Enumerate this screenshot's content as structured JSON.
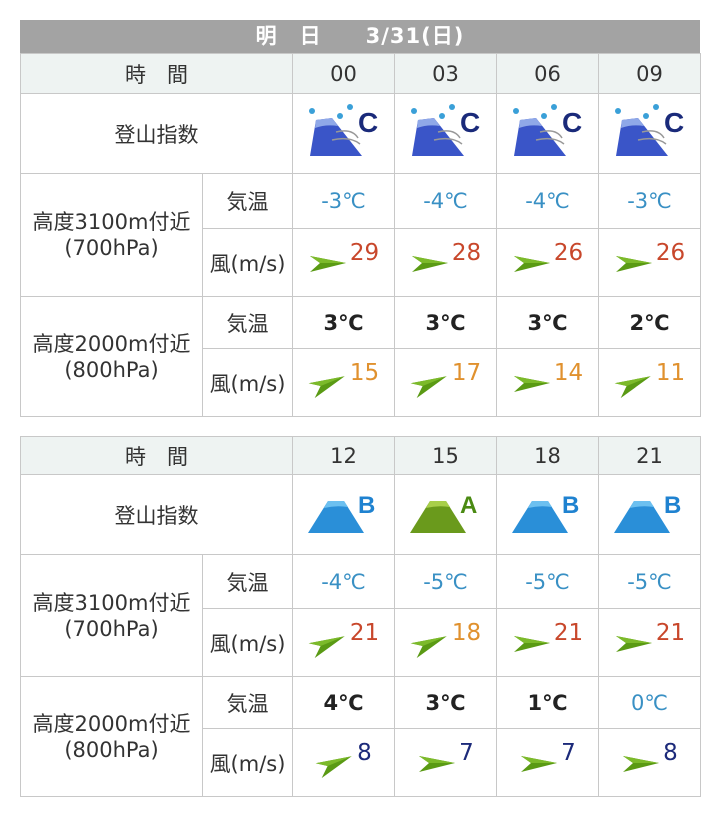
{
  "header": {
    "title": "明　日　　3/31(日)"
  },
  "labels": {
    "time": "時　間",
    "index": "登山指数",
    "alt3100": "高度3100m付近",
    "hpa700": "(700hPa)",
    "alt2000": "高度2000m付近",
    "hpa800": "(800hPa)",
    "temp": "気温",
    "wind": "風(m/s)"
  },
  "colors": {
    "header": "#a3a3a3",
    "temp_negative": "#3990c4",
    "wind_strong": "#c8472b",
    "wind_moderate": "#e0912e",
    "wind_light": "#1c2a7a",
    "arrow": "#5a9a14"
  },
  "tables": [
    {
      "times": [
        "00",
        "03",
        "06",
        "09"
      ],
      "index": [
        {
          "grade": "C",
          "icon": "mountain-rain-wind-icon"
        },
        {
          "grade": "C",
          "icon": "mountain-rain-wind-icon"
        },
        {
          "grade": "C",
          "icon": "mountain-rain-wind-icon"
        },
        {
          "grade": "C",
          "icon": "mountain-rain-wind-icon"
        }
      ],
      "t700": [
        "-3℃",
        "-4℃",
        "-4℃",
        "-3℃"
      ],
      "w700": [
        {
          "speed": "29",
          "dir": "W"
        },
        {
          "speed": "28",
          "dir": "W"
        },
        {
          "speed": "26",
          "dir": "W"
        },
        {
          "speed": "26",
          "dir": "W"
        }
      ],
      "t800": [
        "3℃",
        "3℃",
        "3℃",
        "2℃"
      ],
      "w800": [
        {
          "speed": "15",
          "dir": "SW"
        },
        {
          "speed": "17",
          "dir": "SW"
        },
        {
          "speed": "14",
          "dir": "W"
        },
        {
          "speed": "11",
          "dir": "SW"
        }
      ]
    },
    {
      "times": [
        "12",
        "15",
        "18",
        "21"
      ],
      "index": [
        {
          "grade": "B",
          "icon": "mountain-icon"
        },
        {
          "grade": "A",
          "icon": "mountain-icon"
        },
        {
          "grade": "B",
          "icon": "mountain-icon"
        },
        {
          "grade": "B",
          "icon": "mountain-icon"
        }
      ],
      "t700": [
        "-4℃",
        "-5℃",
        "-5℃",
        "-5℃"
      ],
      "w700": [
        {
          "speed": "21",
          "dir": "SW"
        },
        {
          "speed": "18",
          "dir": "SW"
        },
        {
          "speed": "21",
          "dir": "W"
        },
        {
          "speed": "21",
          "dir": "W"
        }
      ],
      "t800": [
        "4℃",
        "3℃",
        "1℃",
        "0℃"
      ],
      "w800": [
        {
          "speed": "8",
          "dir": "SW"
        },
        {
          "speed": "7",
          "dir": "W"
        },
        {
          "speed": "7",
          "dir": "W"
        },
        {
          "speed": "8",
          "dir": "W"
        }
      ]
    }
  ]
}
